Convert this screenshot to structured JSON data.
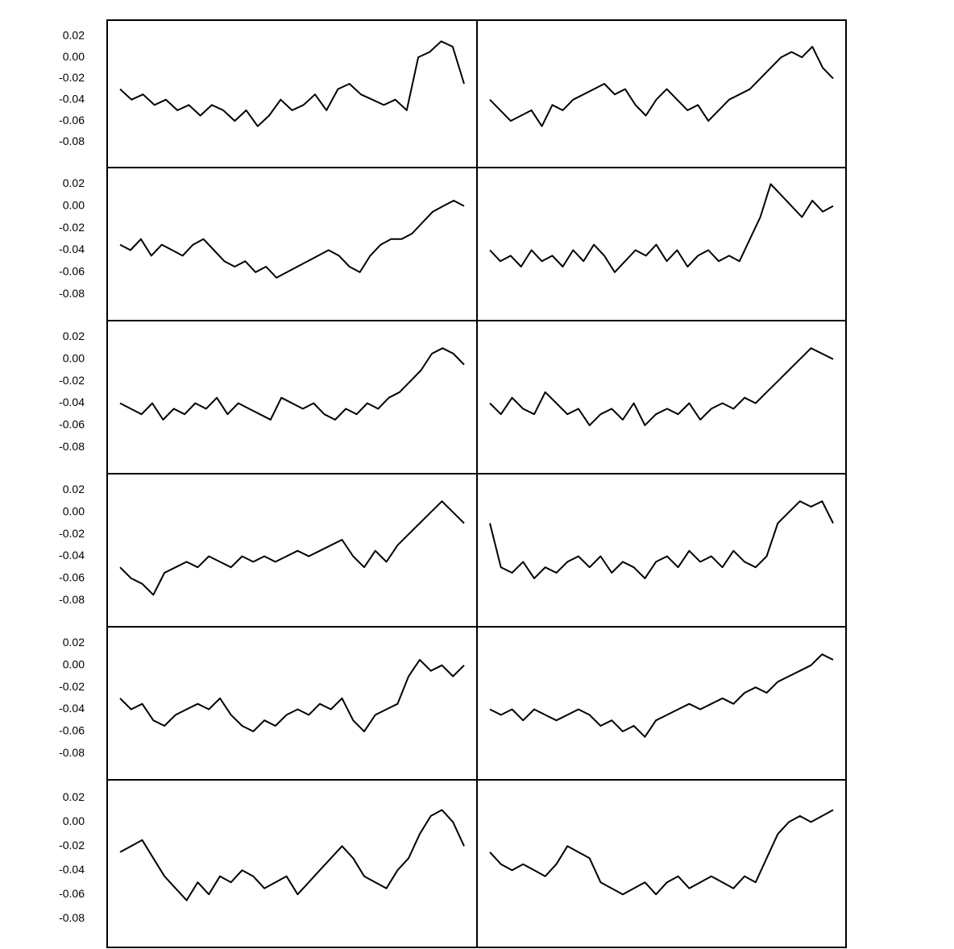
{
  "chart_data": [
    {
      "type": "line",
      "color": "#000000",
      "ylim": [
        -0.104,
        0.035
      ],
      "yticks": [
        0.02,
        {
          "value": 0,
          "label": "0.00"
        },
        -0.02,
        -0.04,
        -0.06,
        -0.08
      ],
      "values": [
        -0.03,
        -0.04,
        -0.035,
        -0.045,
        -0.04,
        -0.05,
        -0.045,
        -0.055,
        -0.045,
        -0.05,
        -0.06,
        -0.05,
        -0.065,
        -0.055,
        -0.04,
        -0.05,
        -0.045,
        -0.035,
        -0.05,
        -0.03,
        -0.025,
        -0.035,
        -0.04,
        -0.045,
        -0.04,
        -0.05,
        0.0,
        0.005,
        0.015,
        0.01,
        -0.025
      ]
    },
    {
      "type": "line",
      "color": "#000000",
      "ylim": [
        -0.104,
        0.035
      ],
      "values": [
        -0.04,
        -0.05,
        -0.06,
        -0.055,
        -0.05,
        -0.065,
        -0.045,
        -0.05,
        -0.04,
        -0.035,
        -0.03,
        -0.025,
        -0.035,
        -0.03,
        -0.045,
        -0.055,
        -0.04,
        -0.03,
        -0.04,
        -0.05,
        -0.045,
        -0.06,
        -0.05,
        -0.04,
        -0.035,
        -0.03,
        -0.02,
        -0.01,
        0.0,
        0.005,
        0.0,
        0.01,
        -0.01,
        -0.02
      ]
    },
    {
      "type": "line",
      "color": "#000000",
      "ylim": [
        -0.104,
        0.035
      ],
      "yticks": [
        0.02,
        {
          "value": 0,
          "label": "0.00"
        },
        -0.02,
        -0.04,
        -0.06,
        -0.08
      ],
      "values": [
        -0.035,
        -0.04,
        -0.03,
        -0.045,
        -0.035,
        -0.04,
        -0.045,
        -0.035,
        -0.03,
        -0.04,
        -0.05,
        -0.055,
        -0.05,
        -0.06,
        -0.055,
        -0.065,
        -0.06,
        -0.055,
        -0.05,
        -0.045,
        -0.04,
        -0.045,
        -0.055,
        -0.06,
        -0.045,
        -0.035,
        -0.03,
        -0.03,
        -0.025,
        -0.015,
        -0.005,
        0.0,
        0.005,
        0.0
      ]
    },
    {
      "type": "line",
      "color": "#000000",
      "ylim": [
        -0.104,
        0.035
      ],
      "values": [
        -0.04,
        -0.05,
        -0.045,
        -0.055,
        -0.04,
        -0.05,
        -0.045,
        -0.055,
        -0.04,
        -0.05,
        -0.035,
        -0.045,
        -0.06,
        -0.05,
        -0.04,
        -0.045,
        -0.035,
        -0.05,
        -0.04,
        -0.055,
        -0.045,
        -0.04,
        -0.05,
        -0.045,
        -0.05,
        -0.03,
        -0.01,
        0.02,
        0.01,
        0.0,
        -0.01,
        0.005,
        -0.005,
        0.0
      ]
    },
    {
      "type": "line",
      "color": "#000000",
      "ylim": [
        -0.104,
        0.035
      ],
      "yticks": [
        0.02,
        {
          "value": 0,
          "label": "0.00"
        },
        -0.02,
        -0.04,
        -0.06,
        -0.08
      ],
      "values": [
        -0.04,
        -0.045,
        -0.05,
        -0.04,
        -0.055,
        -0.045,
        -0.05,
        -0.04,
        -0.045,
        -0.035,
        -0.05,
        -0.04,
        -0.045,
        -0.05,
        -0.055,
        -0.035,
        -0.04,
        -0.045,
        -0.04,
        -0.05,
        -0.055,
        -0.045,
        -0.05,
        -0.04,
        -0.045,
        -0.035,
        -0.03,
        -0.02,
        -0.01,
        0.005,
        0.01,
        0.005,
        -0.005
      ]
    },
    {
      "type": "line",
      "color": "#000000",
      "ylim": [
        -0.104,
        0.035
      ],
      "values": [
        -0.04,
        -0.05,
        -0.035,
        -0.045,
        -0.05,
        -0.03,
        -0.04,
        -0.05,
        -0.045,
        -0.06,
        -0.05,
        -0.045,
        -0.055,
        -0.04,
        -0.06,
        -0.05,
        -0.045,
        -0.05,
        -0.04,
        -0.055,
        -0.045,
        -0.04,
        -0.045,
        -0.035,
        -0.04,
        -0.03,
        -0.02,
        -0.01,
        0.0,
        0.01,
        0.005,
        0.0
      ]
    },
    {
      "type": "line",
      "color": "#000000",
      "ylim": [
        -0.104,
        0.035
      ],
      "yticks": [
        0.02,
        {
          "value": 0,
          "label": "0.00"
        },
        -0.02,
        -0.04,
        -0.06,
        -0.08
      ],
      "values": [
        -0.05,
        -0.06,
        -0.065,
        -0.075,
        -0.055,
        -0.05,
        -0.045,
        -0.05,
        -0.04,
        -0.045,
        -0.05,
        -0.04,
        -0.045,
        -0.04,
        -0.045,
        -0.04,
        -0.035,
        -0.04,
        -0.035,
        -0.03,
        -0.025,
        -0.04,
        -0.05,
        -0.035,
        -0.045,
        -0.03,
        -0.02,
        -0.01,
        0.0,
        0.01,
        0.0,
        -0.01
      ]
    },
    {
      "type": "line",
      "color": "#000000",
      "ylim": [
        -0.104,
        0.035
      ],
      "values": [
        -0.01,
        -0.05,
        -0.055,
        -0.045,
        -0.06,
        -0.05,
        -0.055,
        -0.045,
        -0.04,
        -0.05,
        -0.04,
        -0.055,
        -0.045,
        -0.05,
        -0.06,
        -0.045,
        -0.04,
        -0.05,
        -0.035,
        -0.045,
        -0.04,
        -0.05,
        -0.035,
        -0.045,
        -0.05,
        -0.04,
        -0.01,
        0.0,
        0.01,
        0.005,
        0.01,
        -0.01
      ]
    },
    {
      "type": "line",
      "color": "#000000",
      "ylim": [
        -0.104,
        0.035
      ],
      "yticks": [
        0.02,
        {
          "value": 0,
          "label": "0.00"
        },
        -0.02,
        -0.04,
        -0.06,
        -0.08
      ],
      "values": [
        -0.03,
        -0.04,
        -0.035,
        -0.05,
        -0.055,
        -0.045,
        -0.04,
        -0.035,
        -0.04,
        -0.03,
        -0.045,
        -0.055,
        -0.06,
        -0.05,
        -0.055,
        -0.045,
        -0.04,
        -0.045,
        -0.035,
        -0.04,
        -0.03,
        -0.05,
        -0.06,
        -0.045,
        -0.04,
        -0.035,
        -0.01,
        0.005,
        -0.005,
        0.0,
        -0.01,
        0.0
      ]
    },
    {
      "type": "line",
      "color": "#000000",
      "ylim": [
        -0.104,
        0.035
      ],
      "values": [
        -0.04,
        -0.045,
        -0.04,
        -0.05,
        -0.04,
        -0.045,
        -0.05,
        -0.045,
        -0.04,
        -0.045,
        -0.055,
        -0.05,
        -0.06,
        -0.055,
        -0.065,
        -0.05,
        -0.045,
        -0.04,
        -0.035,
        -0.04,
        -0.035,
        -0.03,
        -0.035,
        -0.025,
        -0.02,
        -0.025,
        -0.015,
        -0.01,
        -0.005,
        0.0,
        0.01,
        0.005
      ]
    },
    {
      "type": "line",
      "color": "#000000",
      "ylim": [
        -0.104,
        0.035
      ],
      "yticks": [
        0.02,
        {
          "value": 0,
          "label": "0.00"
        },
        -0.02,
        -0.04,
        -0.06,
        -0.08
      ],
      "values": [
        -0.025,
        -0.02,
        -0.015,
        -0.03,
        -0.045,
        -0.055,
        -0.065,
        -0.05,
        -0.06,
        -0.045,
        -0.05,
        -0.04,
        -0.045,
        -0.055,
        -0.05,
        -0.045,
        -0.06,
        -0.05,
        -0.04,
        -0.03,
        -0.02,
        -0.03,
        -0.045,
        -0.05,
        -0.055,
        -0.04,
        -0.03,
        -0.01,
        0.005,
        0.01,
        0.0,
        -0.02
      ]
    },
    {
      "type": "line",
      "color": "#000000",
      "ylim": [
        -0.104,
        0.035
      ],
      "values": [
        -0.025,
        -0.035,
        -0.04,
        -0.035,
        -0.04,
        -0.045,
        -0.035,
        -0.02,
        -0.025,
        -0.03,
        -0.05,
        -0.055,
        -0.06,
        -0.055,
        -0.05,
        -0.06,
        -0.05,
        -0.045,
        -0.055,
        -0.05,
        -0.045,
        -0.05,
        -0.055,
        -0.045,
        -0.05,
        -0.03,
        -0.01,
        0.0,
        0.005,
        0.0,
        0.005,
        0.01
      ]
    }
  ]
}
